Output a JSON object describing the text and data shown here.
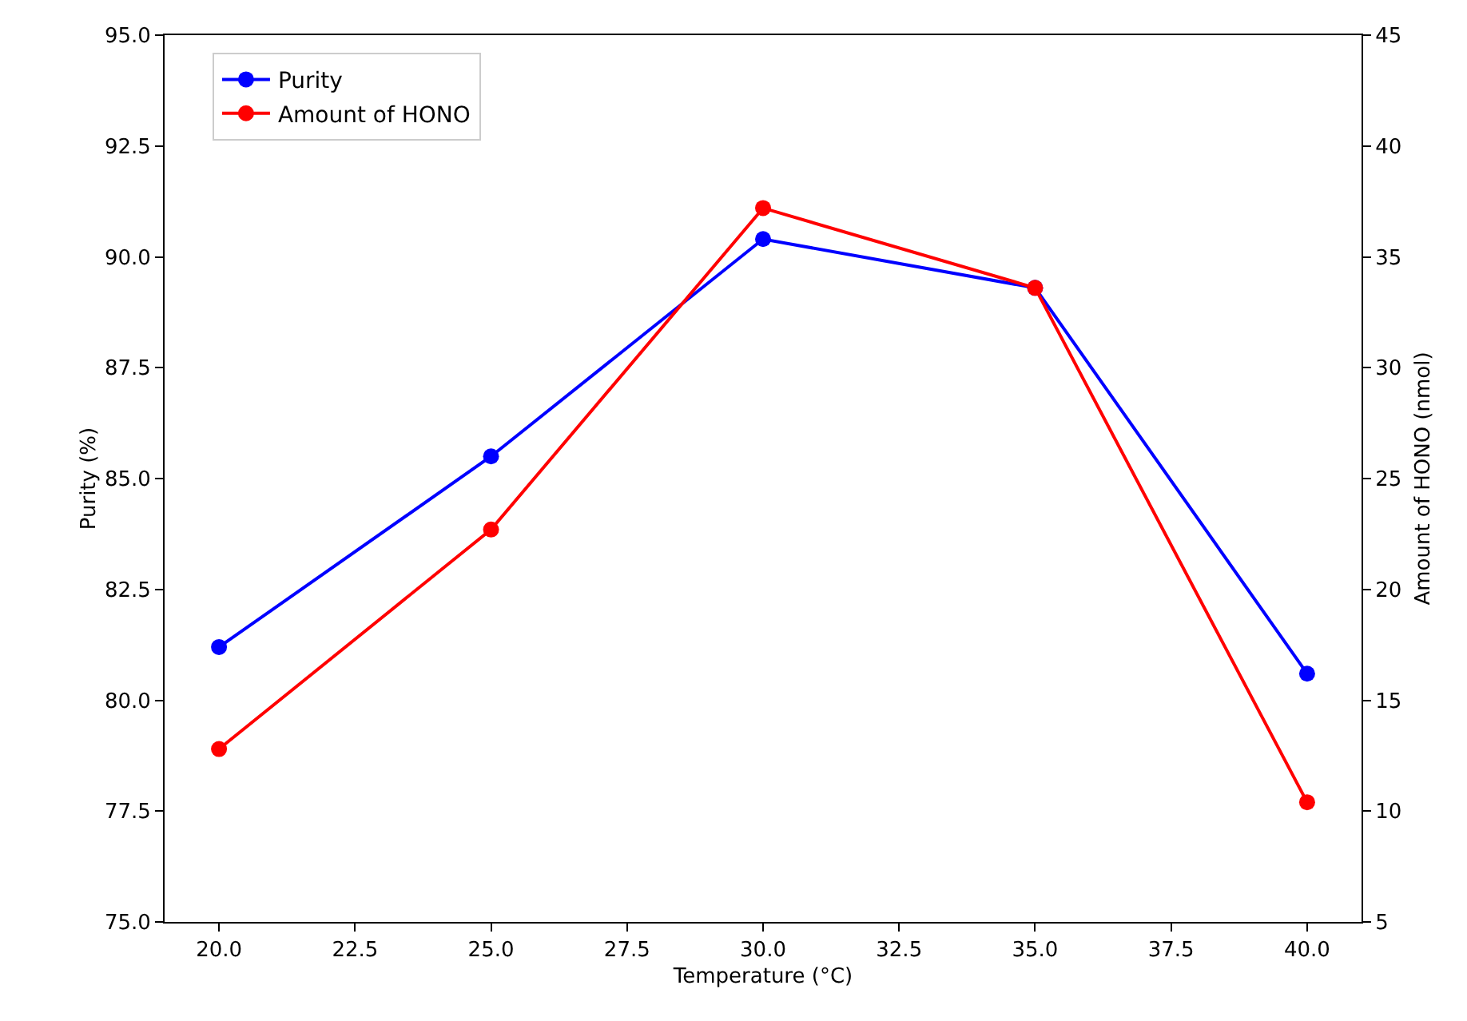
{
  "chart_data": {
    "type": "line",
    "xlabel": "Temperature (°C)",
    "ylabel": "Purity (%)",
    "y2label": "Amount of HONO (nmol)",
    "x": [
      20,
      25,
      30,
      35,
      40
    ],
    "xlim": [
      19,
      41
    ],
    "xticks": [
      {
        "value": 20,
        "label": "20.0"
      },
      {
        "value": 22.5,
        "label": "22.5"
      },
      {
        "value": 25,
        "label": "25.0"
      },
      {
        "value": 27.5,
        "label": "27.5"
      },
      {
        "value": 30,
        "label": "30.0"
      },
      {
        "value": 32.5,
        "label": "32.5"
      },
      {
        "value": 35,
        "label": "35.0"
      },
      {
        "value": 37.5,
        "label": "37.5"
      },
      {
        "value": 40,
        "label": "40.0"
      }
    ],
    "ylim": [
      75,
      95
    ],
    "yticks": [
      {
        "value": 75,
        "label": "75.0"
      },
      {
        "value": 77.5,
        "label": "77.5"
      },
      {
        "value": 80,
        "label": "80.0"
      },
      {
        "value": 82.5,
        "label": "82.5"
      },
      {
        "value": 85,
        "label": "85.0"
      },
      {
        "value": 87.5,
        "label": "87.5"
      },
      {
        "value": 90,
        "label": "90.0"
      },
      {
        "value": 92.5,
        "label": "92.5"
      },
      {
        "value": 95,
        "label": "95.0"
      }
    ],
    "y2lim": [
      5,
      45
    ],
    "y2ticks": [
      5,
      10,
      15,
      20,
      25,
      30,
      35,
      40,
      45
    ],
    "series": [
      {
        "name": "Purity",
        "color": "#0000ff",
        "values": [
          81.2,
          85.5,
          90.4,
          89.3,
          80.6
        ]
      },
      {
        "name": "Amount of HONO",
        "color": "#ff0000",
        "axis": "y2",
        "values": [
          12.8,
          22.7,
          37.2,
          33.6,
          10.4
        ]
      }
    ],
    "marker": "circle",
    "line_style": "solid",
    "grid": false,
    "legend": "top left"
  }
}
